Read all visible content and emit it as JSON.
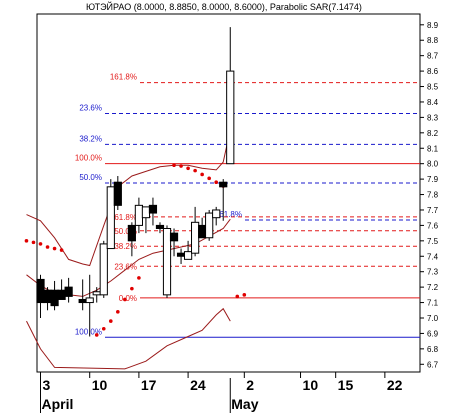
{
  "chart_data": {
    "type": "candlestick",
    "title": "ЮТЭЙРАО (8.0000, 8.8850, 8.0000, 8.6000), Parabolic SAR(7.1474)",
    "xlabel": "",
    "ylabel": "",
    "ylim": [
      6.65,
      8.97
    ],
    "y_ticks": [
      "6.7",
      "6.8",
      "6.9",
      "7.0",
      "7.1",
      "7.2",
      "7.3",
      "7.4",
      "7.5",
      "7.6",
      "7.7",
      "7.8",
      "7.9",
      "8.0",
      "8.1",
      "8.2",
      "8.3",
      "8.4",
      "8.5",
      "8.6",
      "8.7",
      "8.8",
      "8.9"
    ],
    "x_ticks": [
      {
        "label": "3",
        "day": 3
      },
      {
        "label": "10",
        "day": 10
      },
      {
        "label": "17",
        "day": 17
      },
      {
        "label": "24",
        "day": 24
      },
      {
        "label": "2",
        "day": 32
      },
      {
        "label": "10",
        "day": 40
      },
      {
        "label": "15",
        "day": 45
      },
      {
        "label": "22",
        "day": 52
      }
    ],
    "month_labels": [
      {
        "label": "April",
        "day": 3
      },
      {
        "label": "May",
        "day": 30
      }
    ],
    "xlim": [
      2.5,
      57
    ],
    "grid": false,
    "candles": [
      {
        "day": 3,
        "open": 7.25,
        "high": 7.28,
        "low": 7.0,
        "close": 7.1
      },
      {
        "day": 4,
        "open": 7.18,
        "high": 7.2,
        "low": 7.05,
        "close": 7.1
      },
      {
        "day": 5,
        "open": 7.18,
        "high": 7.24,
        "low": 7.05,
        "close": 7.08
      },
      {
        "day": 6,
        "open": 7.18,
        "high": 7.25,
        "low": 7.12,
        "close": 7.12
      },
      {
        "day": 7,
        "open": 7.2,
        "high": 7.26,
        "low": 7.1,
        "close": 7.14
      },
      {
        "day": 9,
        "open": 7.12,
        "high": 7.25,
        "low": 7.05,
        "close": 7.1
      },
      {
        "day": 10,
        "open": 7.1,
        "high": 7.28,
        "low": 6.88,
        "close": 7.13
      },
      {
        "day": 11,
        "open": 7.15,
        "high": 7.2,
        "low": 7.1,
        "close": 7.17
      },
      {
        "day": 12,
        "open": 7.15,
        "high": 7.5,
        "low": 7.13,
        "close": 7.48
      },
      {
        "day": 13,
        "open": 7.45,
        "high": 7.9,
        "low": 7.45,
        "close": 7.85
      },
      {
        "day": 14,
        "open": 7.88,
        "high": 7.92,
        "low": 7.7,
        "close": 7.73
      },
      {
        "day": 16,
        "open": 7.6,
        "high": 7.62,
        "low": 7.4,
        "close": 7.5
      },
      {
        "day": 17,
        "open": 7.6,
        "high": 7.78,
        "low": 7.55,
        "close": 7.73
      },
      {
        "day": 18,
        "open": 7.65,
        "high": 7.72,
        "low": 7.55,
        "close": 7.72
      },
      {
        "day": 19,
        "open": 7.73,
        "high": 7.78,
        "low": 7.6,
        "close": 7.68
      },
      {
        "day": 20,
        "open": 7.6,
        "high": 7.62,
        "low": 7.55,
        "close": 7.58
      },
      {
        "day": 21,
        "open": 7.15,
        "high": 7.6,
        "low": 7.13,
        "close": 7.58
      },
      {
        "day": 22,
        "open": 7.55,
        "high": 7.58,
        "low": 7.4,
        "close": 7.5
      },
      {
        "day": 23,
        "open": 7.42,
        "high": 7.45,
        "low": 7.35,
        "close": 7.4
      },
      {
        "day": 24,
        "open": 7.38,
        "high": 7.5,
        "low": 7.38,
        "close": 7.43
      },
      {
        "day": 25,
        "open": 7.42,
        "high": 7.72,
        "low": 7.4,
        "close": 7.62
      },
      {
        "day": 26,
        "open": 7.6,
        "high": 7.65,
        "low": 7.52,
        "close": 7.52
      },
      {
        "day": 27,
        "open": 7.52,
        "high": 7.7,
        "low": 7.5,
        "close": 7.68
      },
      {
        "day": 28,
        "open": 7.65,
        "high": 7.72,
        "low": 7.6,
        "close": 7.7
      },
      {
        "day": 29,
        "open": 7.88,
        "high": 7.9,
        "low": 7.63,
        "close": 7.85
      },
      {
        "day": 30,
        "open": 8.0,
        "high": 8.885,
        "low": 8.0,
        "close": 8.6
      }
    ],
    "fib_levels_upper": [
      {
        "label": "161.8%",
        "value": 8.525,
        "color": "#e21a1a"
      },
      {
        "label": "23.6%",
        "value": 8.325,
        "color": "#1a1acc"
      },
      {
        "label": "38.2%",
        "value": 8.125,
        "color": "#1a1acc"
      },
      {
        "label": "100.0%",
        "value": 8.0,
        "color": "#e21a1a"
      },
      {
        "label": "50.0%",
        "value": 7.875,
        "color": "#1a1acc"
      },
      {
        "label": "61.8%",
        "value": 7.635,
        "color": "#1a1acc"
      },
      {
        "label": "100.0%",
        "value": 6.875,
        "color": "#1a1acc"
      }
    ],
    "fib_levels_lower": [
      {
        "label": "61.8%",
        "value": 7.655,
        "color": "#e21a1a"
      },
      {
        "label": "50.0%",
        "value": 7.565,
        "color": "#e21a1a"
      },
      {
        "label": "38.2%",
        "value": 7.465,
        "color": "#e21a1a"
      },
      {
        "label": "23.6%",
        "value": 7.335,
        "color": "#e21a1a"
      },
      {
        "label": "0.0%",
        "value": 7.13,
        "color": "#e21a1a"
      }
    ],
    "parabolic_sar": [
      {
        "day": 11,
        "value": 6.89
      },
      {
        "day": 12,
        "value": 6.93
      },
      {
        "day": 13,
        "value": 6.98
      },
      {
        "day": 14,
        "value": 7.04
      },
      {
        "day": 15,
        "value": 7.12
      },
      {
        "day": 16,
        "value": 7.19
      },
      {
        "day": 17,
        "value": 7.26
      },
      {
        "day": 22,
        "value": 7.99
      },
      {
        "day": 23,
        "value": 7.985
      },
      {
        "day": 24,
        "value": 7.97
      },
      {
        "day": 25,
        "value": 7.955
      },
      {
        "day": 26,
        "value": 7.93
      },
      {
        "day": 27,
        "value": 7.905
      },
      {
        "day": 28,
        "value": 7.88
      },
      {
        "day": 29,
        "value": 7.855
      },
      {
        "day": 31,
        "value": 7.14
      },
      {
        "day": 32,
        "value": 7.15
      },
      {
        "day": 1,
        "value": 7.5
      },
      {
        "day": 2,
        "value": 7.49
      },
      {
        "day": 3,
        "value": 7.48
      },
      {
        "day": 4,
        "value": 7.46
      },
      {
        "day": 5,
        "value": 7.45
      },
      {
        "day": 6,
        "value": 7.44
      }
    ],
    "bollinger_upper": [
      {
        "day": 1,
        "value": 7.67
      },
      {
        "day": 3,
        "value": 7.63
      },
      {
        "day": 5,
        "value": 7.52
      },
      {
        "day": 7,
        "value": 7.38
      },
      {
        "day": 9,
        "value": 7.35
      },
      {
        "day": 10,
        "value": 7.34
      },
      {
        "day": 12,
        "value": 7.6
      },
      {
        "day": 14,
        "value": 7.85
      },
      {
        "day": 16,
        "value": 7.92
      },
      {
        "day": 18,
        "value": 7.95
      },
      {
        "day": 20,
        "value": 7.98
      },
      {
        "day": 22,
        "value": 7.99
      },
      {
        "day": 24,
        "value": 7.99
      },
      {
        "day": 26,
        "value": 7.97
      },
      {
        "day": 28,
        "value": 7.96
      },
      {
        "day": 29,
        "value": 8.01
      },
      {
        "day": 30,
        "value": 8.22
      }
    ],
    "bollinger_middle": [
      {
        "day": 1,
        "value": 7.28
      },
      {
        "day": 3,
        "value": 7.21
      },
      {
        "day": 5,
        "value": 7.16
      },
      {
        "day": 7,
        "value": 7.15
      },
      {
        "day": 9,
        "value": 7.14
      },
      {
        "day": 11,
        "value": 7.18
      },
      {
        "day": 13,
        "value": 7.24
      },
      {
        "day": 15,
        "value": 7.31
      },
      {
        "day": 17,
        "value": 7.38
      },
      {
        "day": 19,
        "value": 7.42
      },
      {
        "day": 21,
        "value": 7.44
      },
      {
        "day": 23,
        "value": 7.46
      },
      {
        "day": 25,
        "value": 7.48
      },
      {
        "day": 27,
        "value": 7.53
      },
      {
        "day": 29,
        "value": 7.58
      },
      {
        "day": 30,
        "value": 7.64
      }
    ],
    "bollinger_lower": [
      {
        "day": 1,
        "value": 6.98
      },
      {
        "day": 3,
        "value": 6.8
      },
      {
        "day": 5,
        "value": 6.68
      },
      {
        "day": 15,
        "value": 6.67
      },
      {
        "day": 18,
        "value": 6.72
      },
      {
        "day": 21,
        "value": 6.82
      },
      {
        "day": 24,
        "value": 6.88
      },
      {
        "day": 26,
        "value": 6.92
      },
      {
        "day": 28,
        "value": 7.02
      },
      {
        "day": 29,
        "value": 7.06
      },
      {
        "day": 30,
        "value": 6.98
      }
    ]
  }
}
